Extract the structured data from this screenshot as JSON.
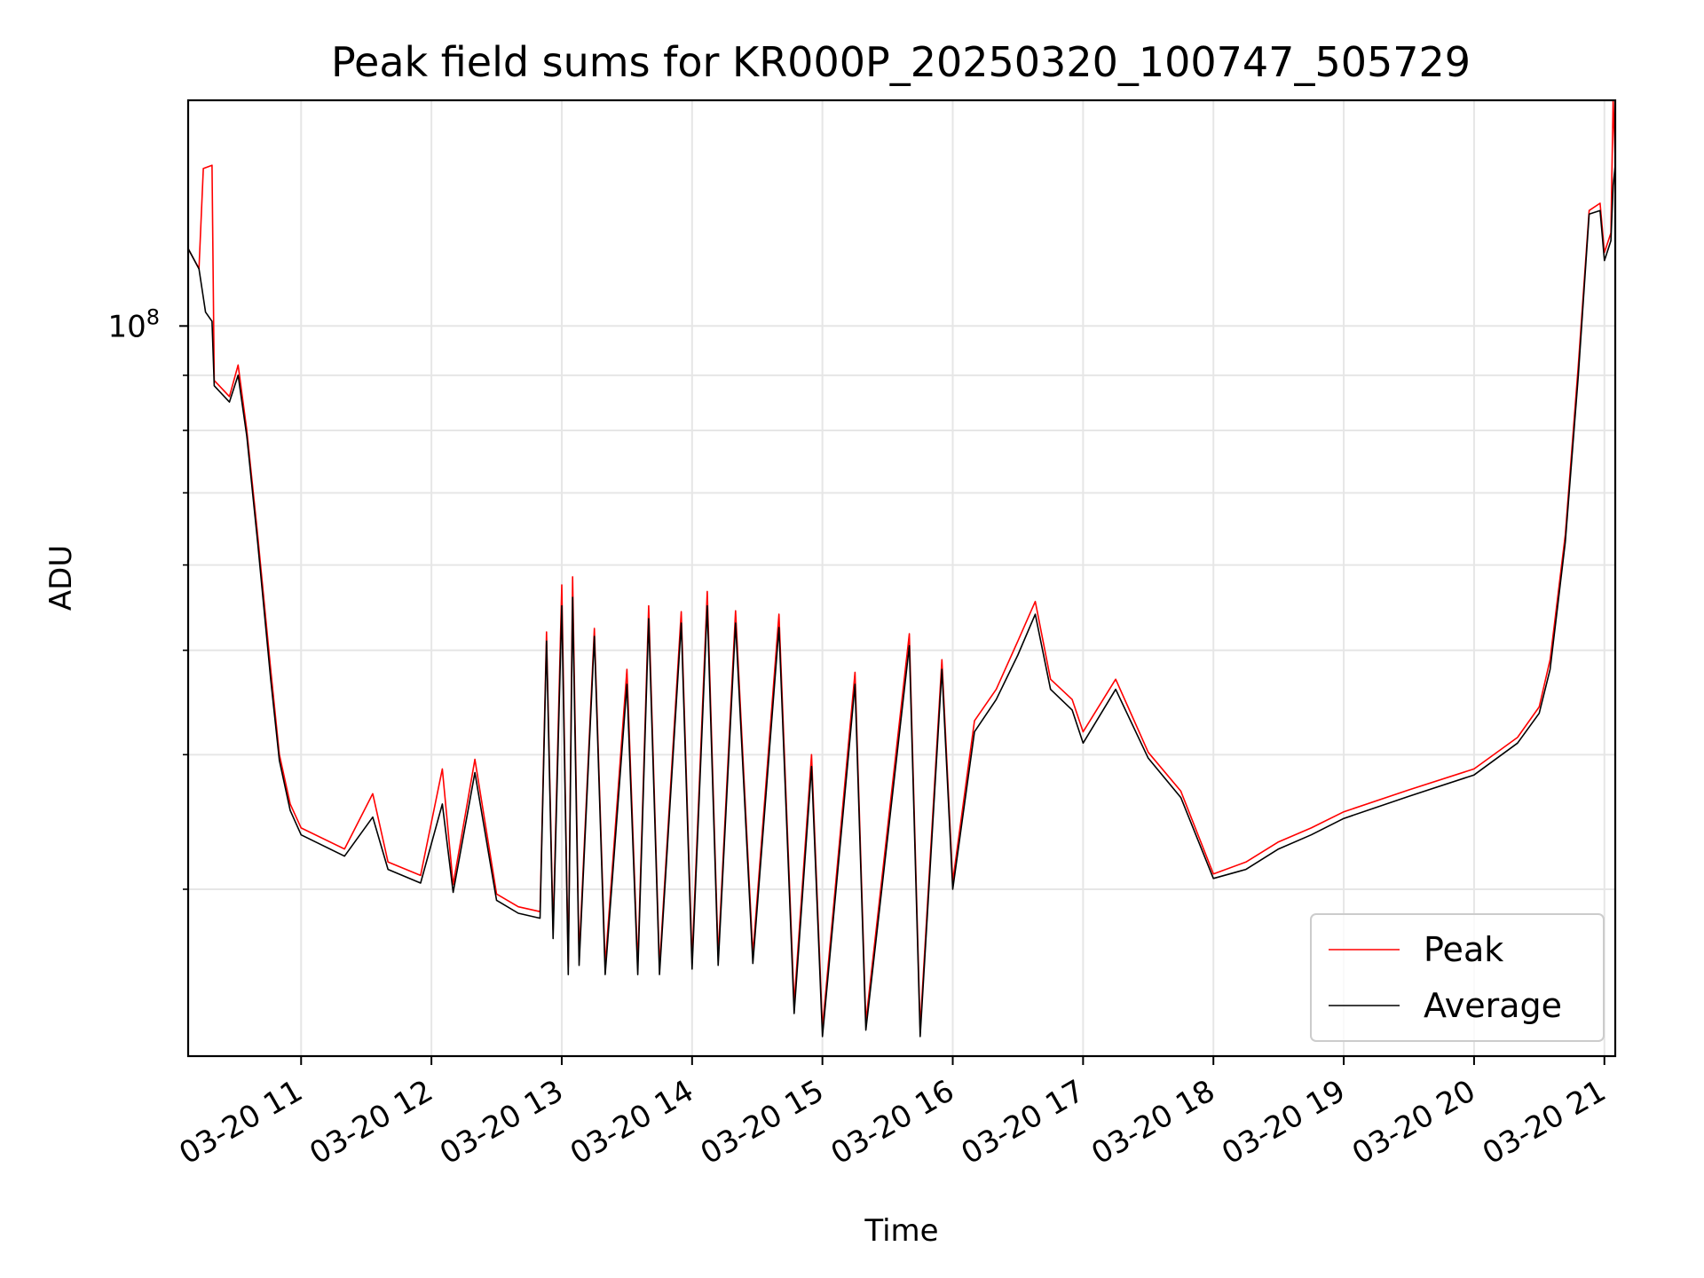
{
  "chart_data": {
    "type": "line",
    "title": "Peak field sums for KR000P_20250320_100747_505729",
    "xlabel": "Time",
    "ylabel": "ADU",
    "x_axis": "datetime",
    "y_scale": "log",
    "xlim": [
      "2025-03-20 10:08",
      "2025-03-20 21:05"
    ],
    "ylim": [
      21000000,
      162000000
    ],
    "x_ticks": [
      {
        "value": "2025-03-20 11:00",
        "label": "03-20 11"
      },
      {
        "value": "2025-03-20 12:00",
        "label": "03-20 12"
      },
      {
        "value": "2025-03-20 13:00",
        "label": "03-20 13"
      },
      {
        "value": "2025-03-20 14:00",
        "label": "03-20 14"
      },
      {
        "value": "2025-03-20 15:00",
        "label": "03-20 15"
      },
      {
        "value": "2025-03-20 16:00",
        "label": "03-20 16"
      },
      {
        "value": "2025-03-20 17:00",
        "label": "03-20 17"
      },
      {
        "value": "2025-03-20 18:00",
        "label": "03-20 18"
      },
      {
        "value": "2025-03-20 19:00",
        "label": "03-20 19"
      },
      {
        "value": "2025-03-20 20:00",
        "label": "03-20 20"
      },
      {
        "value": "2025-03-20 21:00",
        "label": "03-20 21"
      }
    ],
    "y_ticks": [
      {
        "value": 100000000,
        "base": "10",
        "exp": "8"
      }
    ],
    "grid": true,
    "legend_position": "lower-right",
    "series": [
      {
        "name": "Peak",
        "color": "#ff0000",
        "points": [
          [
            "2025-03-20 10:08",
            118000000
          ],
          [
            "2025-03-20 10:13",
            113000000
          ],
          [
            "2025-03-20 10:15",
            140000000
          ],
          [
            "2025-03-20 10:19",
            141000000
          ],
          [
            "2025-03-20 10:20",
            89000000
          ],
          [
            "2025-03-20 10:27",
            86000000
          ],
          [
            "2025-03-20 10:31",
            92000000
          ],
          [
            "2025-03-20 10:35",
            80000000
          ],
          [
            "2025-03-20 10:40",
            64000000
          ],
          [
            "2025-03-20 10:46",
            48000000
          ],
          [
            "2025-03-20 10:50",
            40000000
          ],
          [
            "2025-03-20 10:55",
            36000000
          ],
          [
            "2025-03-20 11:00",
            34200000
          ],
          [
            "2025-03-20 11:20",
            32700000
          ],
          [
            "2025-03-20 11:33",
            36800000
          ],
          [
            "2025-03-20 11:40",
            31800000
          ],
          [
            "2025-03-20 11:55",
            30900000
          ],
          [
            "2025-03-20 12:05",
            38800000
          ],
          [
            "2025-03-20 12:10",
            30300000
          ],
          [
            "2025-03-20 12:20",
            39600000
          ],
          [
            "2025-03-20 12:30",
            29700000
          ],
          [
            "2025-03-20 12:40",
            28900000
          ],
          [
            "2025-03-20 12:50",
            28600000
          ],
          [
            "2025-03-20 12:53",
            52000000
          ],
          [
            "2025-03-20 12:56",
            27500000
          ],
          [
            "2025-03-20 13:00",
            57500000
          ],
          [
            "2025-03-20 13:03",
            25400000
          ],
          [
            "2025-03-20 13:05",
            58500000
          ],
          [
            "2025-03-20 13:08",
            26000000
          ],
          [
            "2025-03-20 13:15",
            52400000
          ],
          [
            "2025-03-20 13:20",
            25500000
          ],
          [
            "2025-03-20 13:30",
            48000000
          ],
          [
            "2025-03-20 13:35",
            25500000
          ],
          [
            "2025-03-20 13:40",
            55000000
          ],
          [
            "2025-03-20 13:45",
            25400000
          ],
          [
            "2025-03-20 13:55",
            54300000
          ],
          [
            "2025-03-20 14:00",
            25800000
          ],
          [
            "2025-03-20 14:07",
            56700000
          ],
          [
            "2025-03-20 14:12",
            26000000
          ],
          [
            "2025-03-20 14:20",
            54400000
          ],
          [
            "2025-03-20 14:28",
            26100000
          ],
          [
            "2025-03-20 14:40",
            54000000
          ],
          [
            "2025-03-20 14:47",
            23500000
          ],
          [
            "2025-03-20 14:55",
            40000000
          ],
          [
            "2025-03-20 15:00",
            22300000
          ],
          [
            "2025-03-20 15:15",
            47700000
          ],
          [
            "2025-03-20 15:20",
            22600000
          ],
          [
            "2025-03-20 15:40",
            51800000
          ],
          [
            "2025-03-20 15:45",
            22300000
          ],
          [
            "2025-03-20 15:55",
            49000000
          ],
          [
            "2025-03-20 16:00",
            30500000
          ],
          [
            "2025-03-20 16:10",
            43000000
          ],
          [
            "2025-03-20 16:20",
            46000000
          ],
          [
            "2025-03-20 16:30",
            51000000
          ],
          [
            "2025-03-20 16:38",
            55500000
          ],
          [
            "2025-03-20 16:45",
            47000000
          ],
          [
            "2025-03-20 16:55",
            45000000
          ],
          [
            "2025-03-20 17:00",
            42000000
          ],
          [
            "2025-03-20 17:15",
            47000000
          ],
          [
            "2025-03-20 17:30",
            40200000
          ],
          [
            "2025-03-20 17:45",
            37000000
          ],
          [
            "2025-03-20 18:00",
            31000000
          ],
          [
            "2025-03-20 18:15",
            31800000
          ],
          [
            "2025-03-20 18:30",
            33200000
          ],
          [
            "2025-03-20 18:45",
            34200000
          ],
          [
            "2025-03-20 19:00",
            35400000
          ],
          [
            "2025-03-20 19:30",
            37100000
          ],
          [
            "2025-03-20 20:00",
            38800000
          ],
          [
            "2025-03-20 20:20",
            41500000
          ],
          [
            "2025-03-20 20:30",
            44300000
          ],
          [
            "2025-03-20 20:35",
            49000000
          ],
          [
            "2025-03-20 20:42",
            64000000
          ],
          [
            "2025-03-20 20:48",
            92000000
          ],
          [
            "2025-03-20 20:53",
            128000000
          ],
          [
            "2025-03-20 20:58",
            130000000
          ],
          [
            "2025-03-20 21:00",
            117000000
          ],
          [
            "2025-03-20 21:03",
            122000000
          ],
          [
            "2025-03-20 21:04",
            162000000
          ],
          [
            "2025-03-20 21:05",
            143000000
          ]
        ]
      },
      {
        "name": "Average",
        "color": "#000000",
        "points": [
          [
            "2025-03-20 10:08",
            118000000
          ],
          [
            "2025-03-20 10:13",
            113000000
          ],
          [
            "2025-03-20 10:16",
            103000000
          ],
          [
            "2025-03-20 10:19",
            101000000
          ],
          [
            "2025-03-20 10:20",
            88000000
          ],
          [
            "2025-03-20 10:27",
            85000000
          ],
          [
            "2025-03-20 10:31",
            90000000
          ],
          [
            "2025-03-20 10:35",
            79000000
          ],
          [
            "2025-03-20 10:40",
            63000000
          ],
          [
            "2025-03-20 10:46",
            47000000
          ],
          [
            "2025-03-20 10:50",
            39500000
          ],
          [
            "2025-03-20 10:55",
            35500000
          ],
          [
            "2025-03-20 11:00",
            33700000
          ],
          [
            "2025-03-20 11:20",
            32200000
          ],
          [
            "2025-03-20 11:33",
            35000000
          ],
          [
            "2025-03-20 11:40",
            31300000
          ],
          [
            "2025-03-20 11:55",
            30400000
          ],
          [
            "2025-03-20 12:05",
            36000000
          ],
          [
            "2025-03-20 12:10",
            29800000
          ],
          [
            "2025-03-20 12:20",
            38500000
          ],
          [
            "2025-03-20 12:30",
            29300000
          ],
          [
            "2025-03-20 12:40",
            28500000
          ],
          [
            "2025-03-20 12:50",
            28200000
          ],
          [
            "2025-03-20 12:53",
            51000000
          ],
          [
            "2025-03-20 12:56",
            27000000
          ],
          [
            "2025-03-20 13:00",
            55000000
          ],
          [
            "2025-03-20 13:03",
            25000000
          ],
          [
            "2025-03-20 13:05",
            56000000
          ],
          [
            "2025-03-20 13:08",
            25500000
          ],
          [
            "2025-03-20 13:15",
            51500000
          ],
          [
            "2025-03-20 13:20",
            25000000
          ],
          [
            "2025-03-20 13:30",
            46500000
          ],
          [
            "2025-03-20 13:35",
            25000000
          ],
          [
            "2025-03-20 13:40",
            53500000
          ],
          [
            "2025-03-20 13:45",
            25000000
          ],
          [
            "2025-03-20 13:55",
            53000000
          ],
          [
            "2025-03-20 14:00",
            25300000
          ],
          [
            "2025-03-20 14:07",
            55000000
          ],
          [
            "2025-03-20 14:12",
            25500000
          ],
          [
            "2025-03-20 14:20",
            53000000
          ],
          [
            "2025-03-20 14:28",
            25600000
          ],
          [
            "2025-03-20 14:40",
            52500000
          ],
          [
            "2025-03-20 14:47",
            23000000
          ],
          [
            "2025-03-20 14:55",
            39000000
          ],
          [
            "2025-03-20 15:00",
            21900000
          ],
          [
            "2025-03-20 15:15",
            46500000
          ],
          [
            "2025-03-20 15:20",
            22200000
          ],
          [
            "2025-03-20 15:40",
            50500000
          ],
          [
            "2025-03-20 15:45",
            21900000
          ],
          [
            "2025-03-20 15:55",
            48000000
          ],
          [
            "2025-03-20 16:00",
            30000000
          ],
          [
            "2025-03-20 16:10",
            42000000
          ],
          [
            "2025-03-20 16:20",
            45000000
          ],
          [
            "2025-03-20 16:30",
            49500000
          ],
          [
            "2025-03-20 16:38",
            54000000
          ],
          [
            "2025-03-20 16:45",
            46000000
          ],
          [
            "2025-03-20 16:55",
            44000000
          ],
          [
            "2025-03-20 17:00",
            41000000
          ],
          [
            "2025-03-20 17:15",
            46000000
          ],
          [
            "2025-03-20 17:30",
            39700000
          ],
          [
            "2025-03-20 17:45",
            36500000
          ],
          [
            "2025-03-20 18:00",
            30700000
          ],
          [
            "2025-03-20 18:15",
            31300000
          ],
          [
            "2025-03-20 18:30",
            32700000
          ],
          [
            "2025-03-20 18:45",
            33700000
          ],
          [
            "2025-03-20 19:00",
            34900000
          ],
          [
            "2025-03-20 19:30",
            36600000
          ],
          [
            "2025-03-20 20:00",
            38300000
          ],
          [
            "2025-03-20 20:20",
            41000000
          ],
          [
            "2025-03-20 20:30",
            43700000
          ],
          [
            "2025-03-20 20:35",
            48000000
          ],
          [
            "2025-03-20 20:42",
            63000000
          ],
          [
            "2025-03-20 20:48",
            90000000
          ],
          [
            "2025-03-20 20:53",
            127000000
          ],
          [
            "2025-03-20 20:58",
            128000000
          ],
          [
            "2025-03-20 21:00",
            115000000
          ],
          [
            "2025-03-20 21:03",
            120000000
          ],
          [
            "2025-03-20 21:04",
            135000000
          ],
          [
            "2025-03-20 21:05",
            141000000
          ]
        ]
      }
    ]
  },
  "colors": {
    "peak": "#ff0000",
    "average": "#000000",
    "grid": "#e6e6e6",
    "legend_border": "#cccccc"
  }
}
